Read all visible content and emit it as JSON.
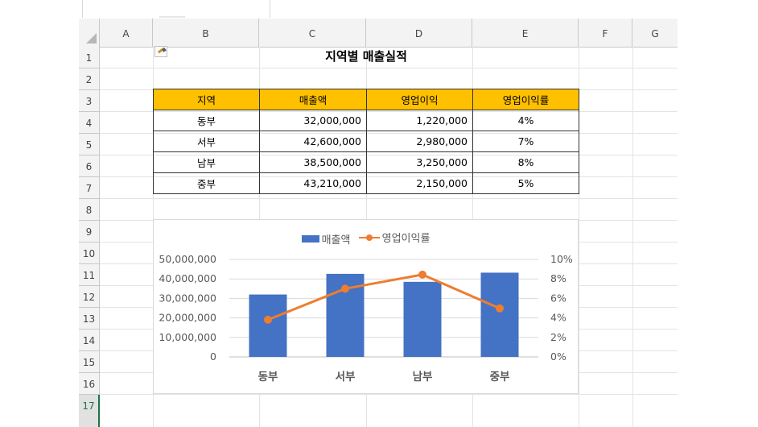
{
  "colors": {
    "header_fill": "#ffc000",
    "bar": "#4472c4",
    "line": "#ed7d31",
    "active_row": "#217346"
  },
  "columns": [
    "A",
    "B",
    "C",
    "D",
    "E",
    "F",
    "G"
  ],
  "rows": [
    "1",
    "2",
    "3",
    "4",
    "5",
    "6",
    "7",
    "8",
    "9",
    "10",
    "11",
    "12",
    "13",
    "14",
    "15",
    "16",
    "17"
  ],
  "sheet": {
    "title": "지역별 매출실적",
    "table": {
      "headers": [
        "지역",
        "매출액",
        "영업이익",
        "영업이익률"
      ],
      "rows": [
        {
          "region": "동부",
          "sales": "32,000,000",
          "profit": "1,220,000",
          "margin": "4%"
        },
        {
          "region": "서부",
          "sales": "42,600,000",
          "profit": "2,980,000",
          "margin": "7%"
        },
        {
          "region": "남부",
          "sales": "38,500,000",
          "profit": "3,250,000",
          "margin": "8%"
        },
        {
          "region": "중부",
          "sales": "43,210,000",
          "profit": "2,150,000",
          "margin": "5%"
        }
      ]
    }
  },
  "chart_data": {
    "type": "bar",
    "categories": [
      "동부",
      "서부",
      "남부",
      "중부"
    ],
    "series": [
      {
        "name": "매출액",
        "type": "bar",
        "axis": "left",
        "values": [
          32000000,
          42600000,
          38500000,
          43210000
        ]
      },
      {
        "name": "영업이익률",
        "type": "line",
        "axis": "right",
        "values": [
          3.8125,
          7.0,
          8.4416,
          4.9757
        ]
      }
    ],
    "ylim_left": [
      0,
      50000000
    ],
    "ylim_right": [
      0,
      10
    ],
    "left_ticks": [
      "0",
      "10,000,000",
      "20,000,000",
      "30,000,000",
      "40,000,000",
      "50,000,000"
    ],
    "right_ticks": [
      "0%",
      "2%",
      "4%",
      "6%",
      "8%",
      "10%"
    ],
    "legend": "top",
    "grid": true
  }
}
